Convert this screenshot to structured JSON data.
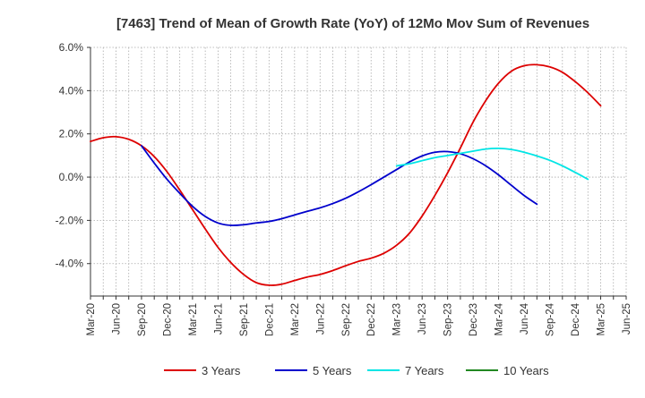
{
  "chart_data": {
    "type": "line",
    "title": "[7463]  Trend of Mean of Growth Rate (YoY) of 12Mo Mov Sum of Revenues",
    "xlabel": "",
    "ylabel": "",
    "ylim": [
      -5.5,
      6.0
    ],
    "yticks": [
      -4.0,
      -2.0,
      0.0,
      2.0,
      4.0,
      6.0
    ],
    "ytick_labels": [
      "-4.0%",
      "-2.0%",
      "0.0%",
      "2.0%",
      "4.0%",
      "6.0%"
    ],
    "x_labels": [
      "Mar-20",
      "Jun-20",
      "Sep-20",
      "Dec-20",
      "Mar-21",
      "Jun-21",
      "Sep-21",
      "Dec-21",
      "Mar-22",
      "Jun-22",
      "Sep-22",
      "Dec-22",
      "Mar-23",
      "Jun-23",
      "Sep-23",
      "Dec-23",
      "Mar-24",
      "Jun-24",
      "Sep-24",
      "Dec-24",
      "Mar-25",
      "Jun-25"
    ],
    "grid": true,
    "legend_position": "bottom",
    "series": [
      {
        "name": "3 Years",
        "color": "#dd0000",
        "start_index": 0,
        "values": [
          1.65,
          1.82,
          1.87,
          1.75,
          1.45,
          0.95,
          0.25,
          -0.6,
          -1.5,
          -2.4,
          -3.25,
          -3.95,
          -4.5,
          -4.88,
          -5.0,
          -4.95,
          -4.78,
          -4.62,
          -4.5,
          -4.32,
          -4.1,
          -3.9,
          -3.75,
          -3.52,
          -3.15,
          -2.6,
          -1.8,
          -0.85,
          0.2,
          1.35,
          2.55,
          3.55,
          4.35,
          4.9,
          5.15,
          5.2,
          5.1,
          4.85,
          4.42,
          3.9,
          3.3
        ]
      },
      {
        "name": "5 Years",
        "color": "#0000cc",
        "start_index": 4,
        "values": [
          1.45,
          0.65,
          -0.1,
          -0.75,
          -1.35,
          -1.82,
          -2.12,
          -2.23,
          -2.2,
          -2.12,
          -2.05,
          -1.92,
          -1.75,
          -1.58,
          -1.42,
          -1.22,
          -0.98,
          -0.68,
          -0.35,
          0.0,
          0.35,
          0.7,
          0.98,
          1.15,
          1.18,
          1.08,
          0.85,
          0.52,
          0.1,
          -0.38,
          -0.85,
          -1.25
        ]
      },
      {
        "name": "7 Years",
        "color": "#00e5e5",
        "start_index": 24,
        "values": [
          0.52,
          0.62,
          0.76,
          0.9,
          1.0,
          1.1,
          1.2,
          1.3,
          1.33,
          1.28,
          1.15,
          0.98,
          0.78,
          0.52,
          0.22,
          -0.1
        ]
      },
      {
        "name": "10 Years",
        "color": "#228822",
        "start_index": 0,
        "values": []
      }
    ]
  }
}
